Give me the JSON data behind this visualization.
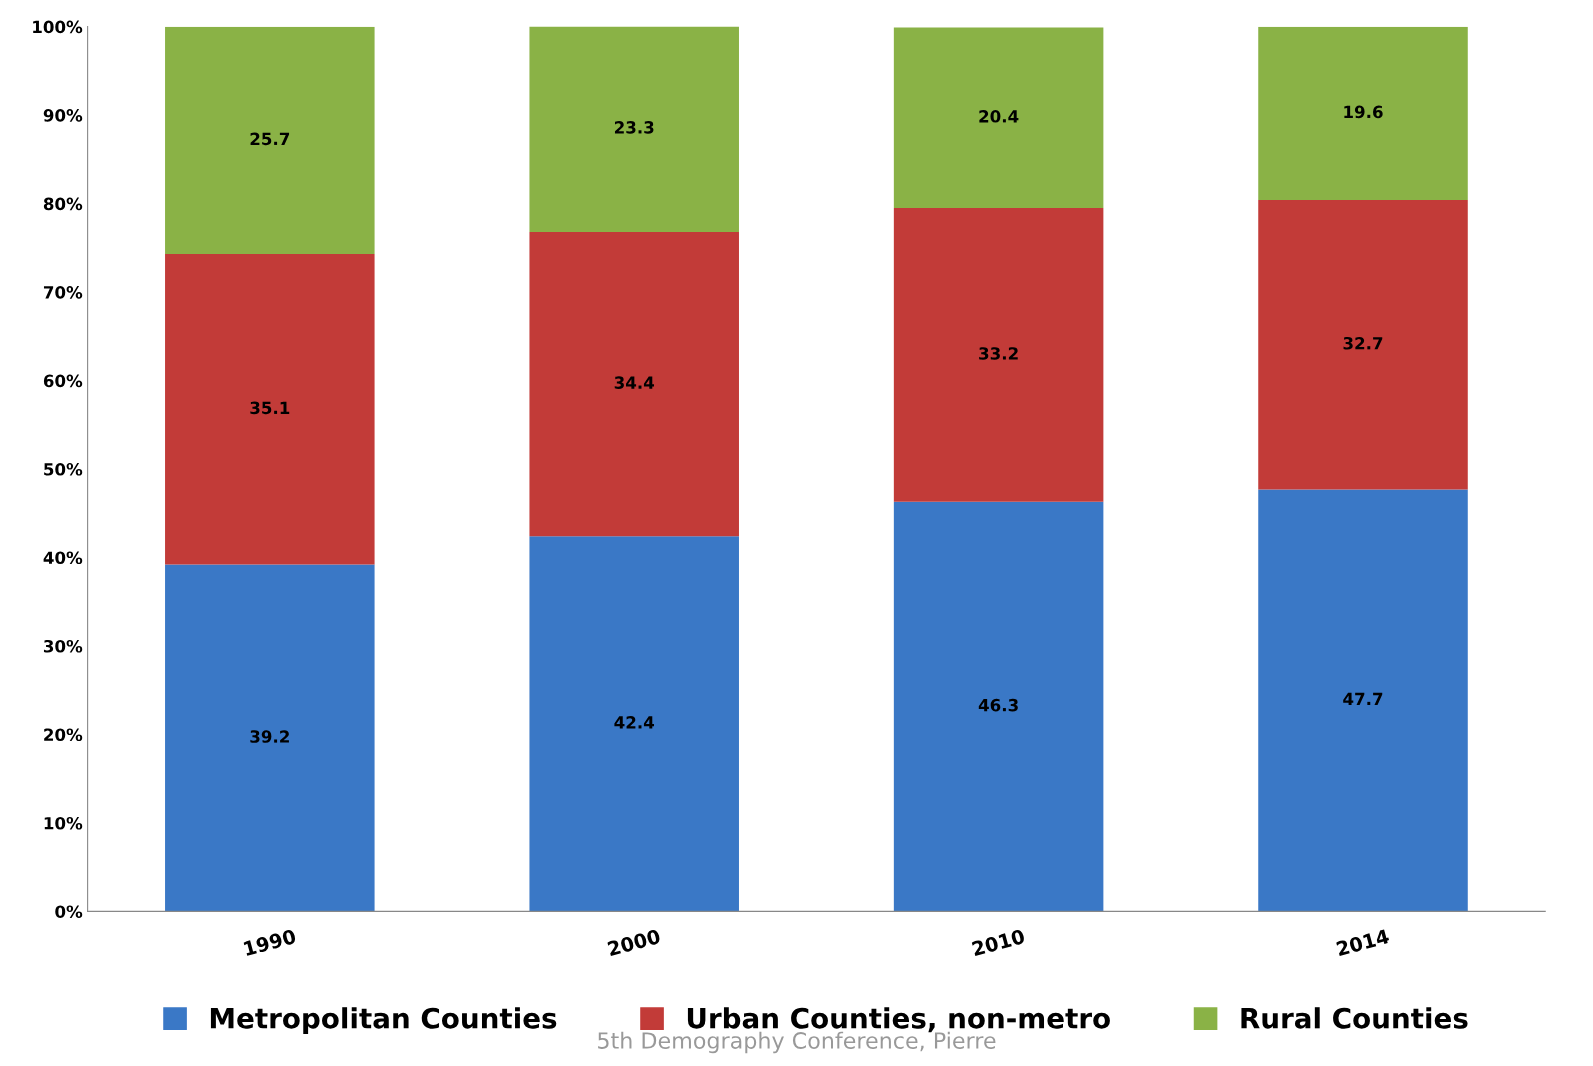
{
  "chart_data": {
    "type": "bar",
    "stacked": true,
    "categories": [
      "1990",
      "2000",
      "2010",
      "2014"
    ],
    "series": [
      {
        "name": "Metropolitan Counties",
        "color": "#3a78c6",
        "values": [
          39.2,
          42.4,
          46.3,
          47.7
        ]
      },
      {
        "name": "Urban Counties, non-metro",
        "color": "#c23b38",
        "values": [
          35.1,
          34.4,
          33.2,
          32.7
        ]
      },
      {
        "name": "Rural Counties",
        "color": "#8ab246",
        "values": [
          25.7,
          23.3,
          20.4,
          19.6
        ]
      }
    ],
    "ylim": [
      0,
      100
    ],
    "yticks": [
      {
        "value": 0,
        "label": "0%"
      },
      {
        "value": 10,
        "label": "10%"
      },
      {
        "value": 20,
        "label": "20%"
      },
      {
        "value": 30,
        "label": "30%"
      },
      {
        "value": 40,
        "label": "40%"
      },
      {
        "value": 50,
        "label": "50%"
      },
      {
        "value": 60,
        "label": "60%"
      },
      {
        "value": 70,
        "label": "70%"
      },
      {
        "value": 80,
        "label": "80%"
      },
      {
        "value": 90,
        "label": "90%"
      },
      {
        "value": 100,
        "label": "100%"
      }
    ],
    "data_labels": true,
    "grid": false,
    "legend": "bottom",
    "annotations": [
      "5th Demography Conference, Pierre"
    ]
  }
}
